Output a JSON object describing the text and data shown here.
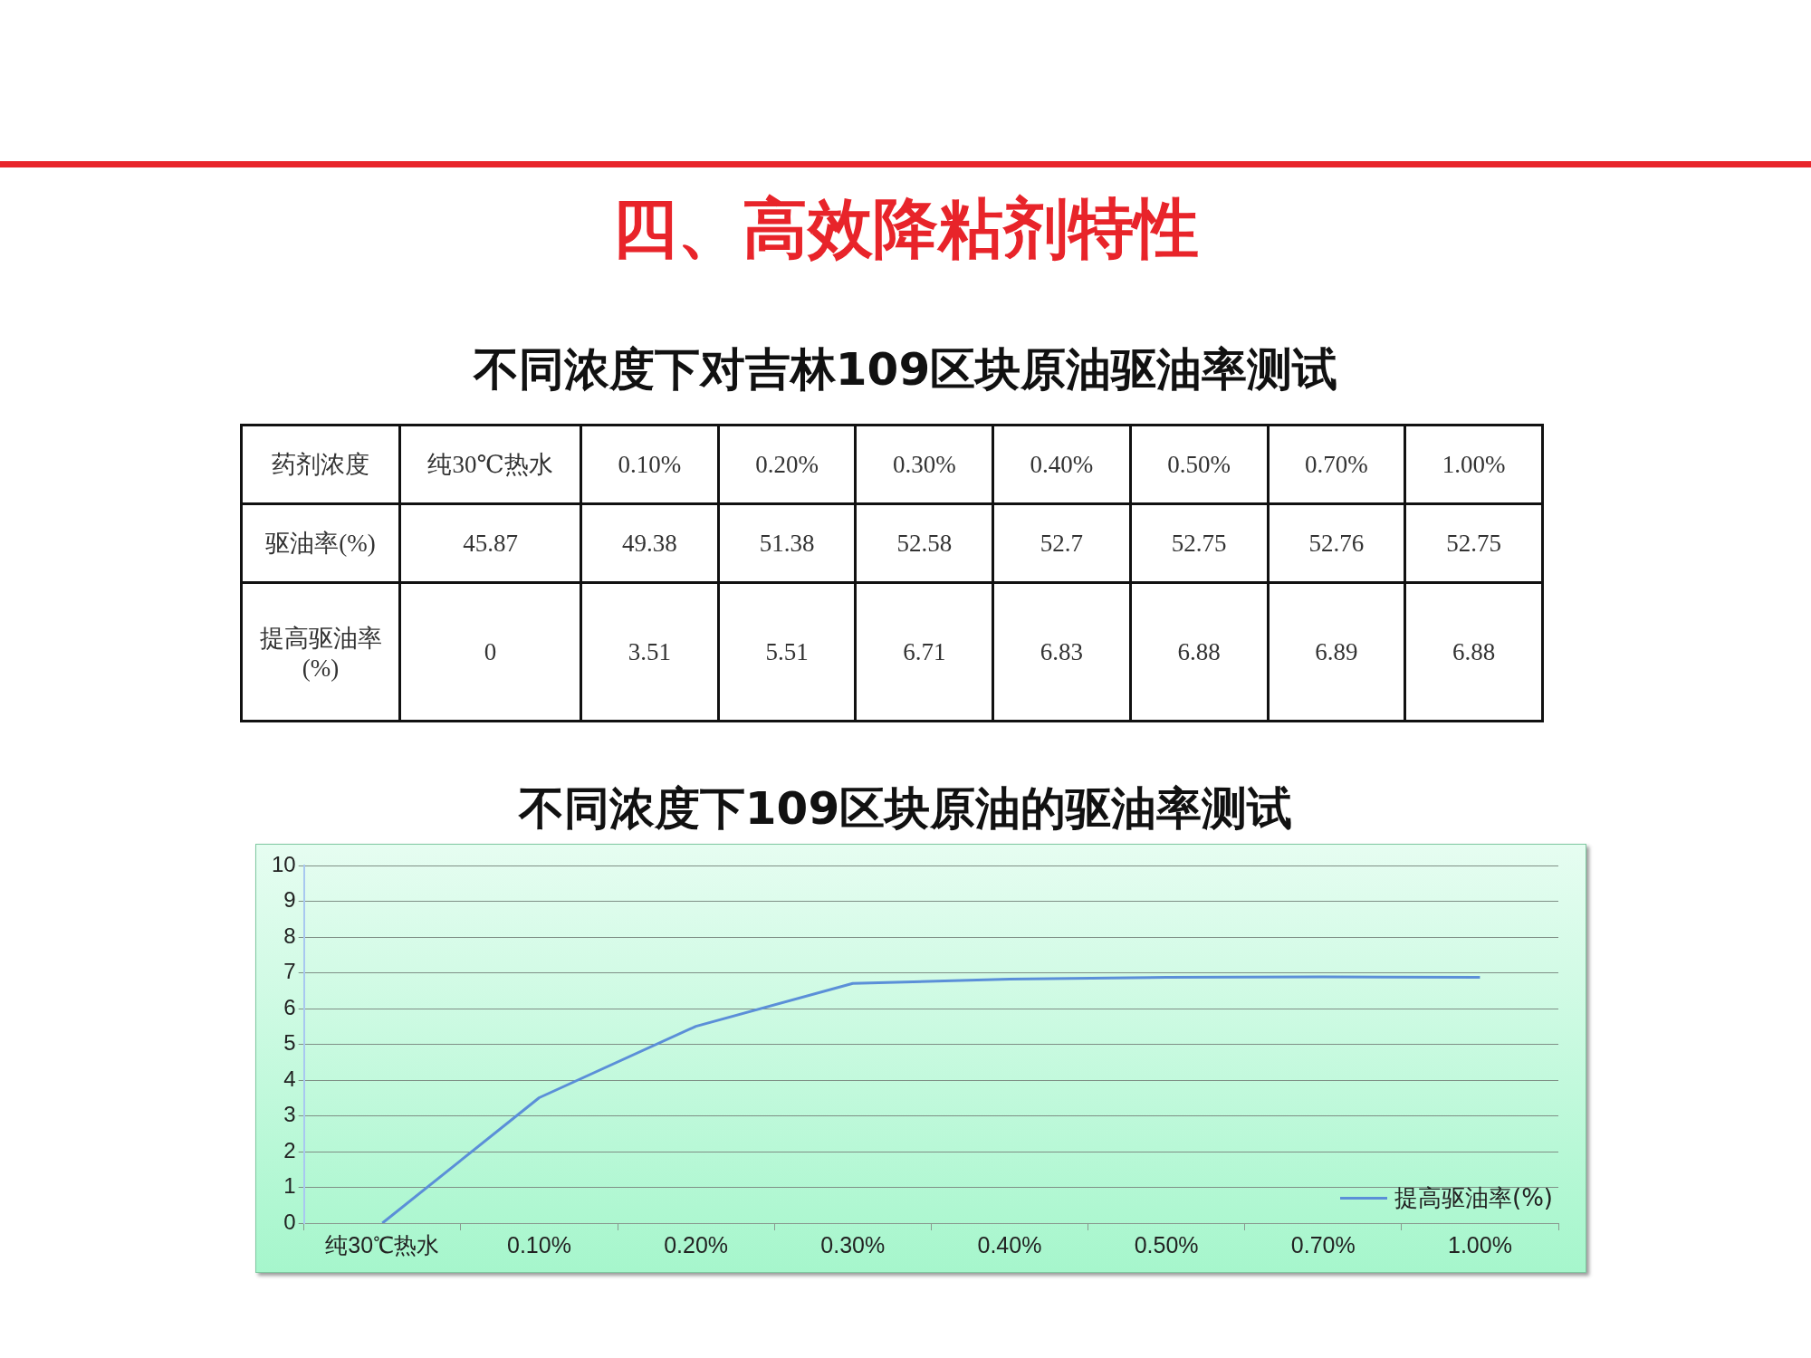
{
  "chart_data": [
    {
      "type": "heatmap",
      "title": "不同浓度下对吉林109区块原油驱油率测试",
      "annotations": [
        "四、高效降粘剂特性"
      ],
      "xlabel": "药剂浓度",
      "categories": [
        "纯30℃热水",
        "0.10%",
        "0.20%",
        "0.30%",
        "0.40%",
        "0.50%",
        "0.70%",
        "1.00%"
      ],
      "data_labels": true,
      "y_categories": [
        "驱油率(%)",
        "提高驱油率(%)"
      ],
      "cells": [
        [
          45.87,
          49.38,
          51.38,
          52.58,
          52.7,
          52.75,
          52.76,
          52.75
        ],
        [
          0,
          3.51,
          5.51,
          6.71,
          6.83,
          6.88,
          6.89,
          6.88
        ]
      ]
    },
    {
      "type": "line",
      "title": "不同浓度下109区块原油的驱油率测试",
      "categories": [
        "纯30℃热水",
        "0.10%",
        "0.20%",
        "0.30%",
        "0.40%",
        "0.50%",
        "0.70%",
        "1.00%"
      ],
      "ylim": [
        0,
        10
      ],
      "yticks": [
        0,
        1,
        2,
        3,
        4,
        5,
        6,
        7,
        8,
        9,
        10
      ],
      "grid": "y",
      "legend": "bottom right",
      "marker": "none",
      "series": [
        {
          "name": "提高驱油率(%)",
          "color": "#5b8fd8",
          "values": [
            0,
            3.51,
            5.51,
            6.71,
            6.83,
            6.88,
            6.89,
            6.88
          ]
        }
      ]
    }
  ]
}
